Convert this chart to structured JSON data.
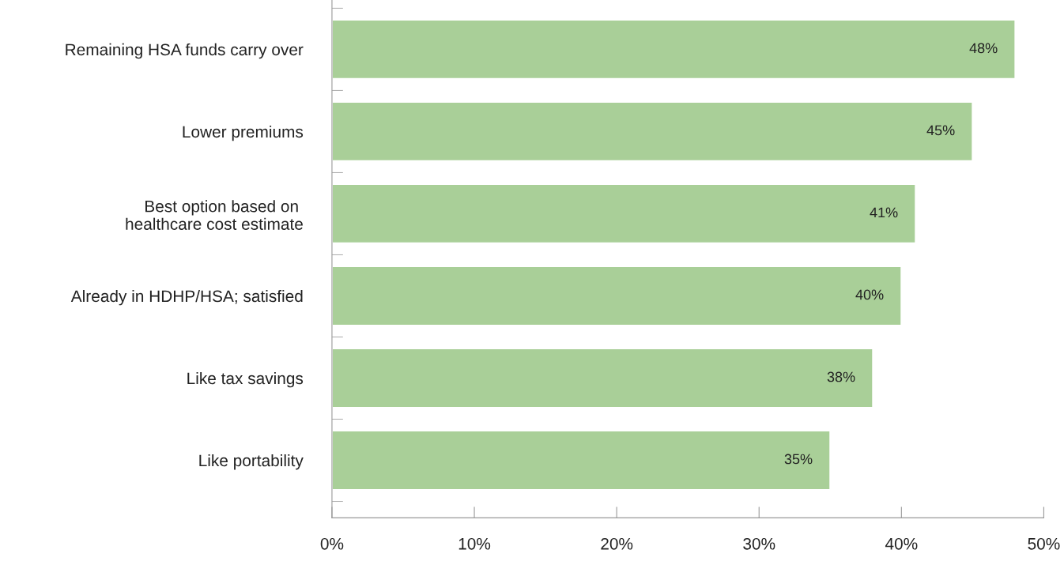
{
  "chart_data": {
    "type": "bar",
    "orientation": "horizontal",
    "categories": [
      "Remaining HSA funds carry over",
      "Lower premiums",
      "Best option based on \nhealthcare cost estimate",
      "Already in HDHP/HSA; satisfied",
      "Like tax savings",
      "Like portability"
    ],
    "values": [
      48,
      45,
      41,
      40,
      38,
      35
    ],
    "value_labels": [
      "48%",
      "45%",
      "41%",
      "40%",
      "38%",
      "35%"
    ],
    "color": "#a9cf98",
    "xlim": [
      0,
      50
    ],
    "xticks": [
      {
        "value": 0,
        "label": "0%"
      },
      {
        "value": 10,
        "label": "10%"
      },
      {
        "value": 20,
        "label": "20%"
      },
      {
        "value": 30,
        "label": "30%"
      },
      {
        "value": 40,
        "label": "40%"
      },
      {
        "value": 50,
        "label": "50%"
      }
    ],
    "grid": false,
    "legend": false
  }
}
